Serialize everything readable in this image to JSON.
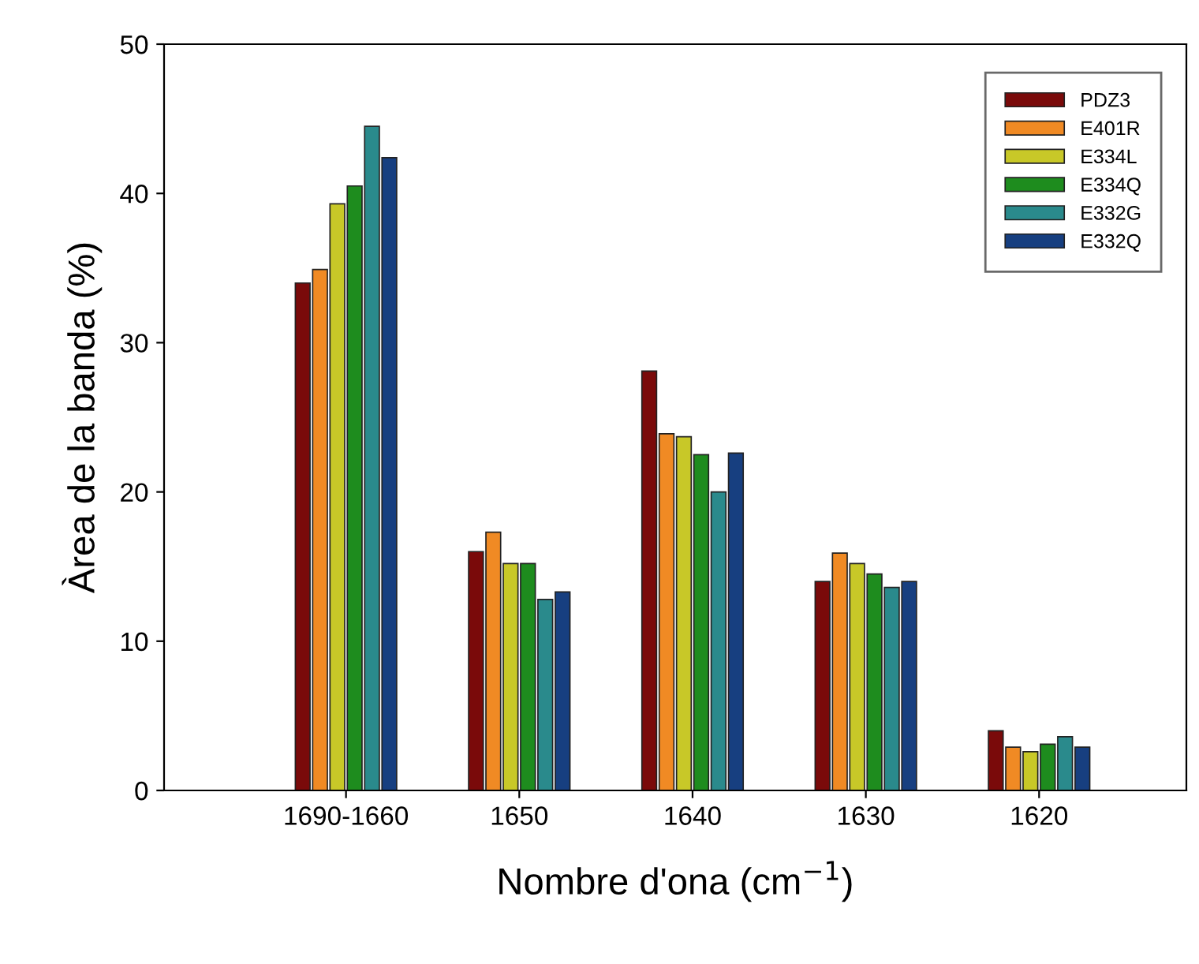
{
  "chart_data": {
    "type": "bar",
    "xlabel": "Nombre d'ona (cm$^{−1}$)",
    "ylabel": "Àrea de la banda (%)",
    "categories": [
      "1690-1660",
      "1650",
      "1640",
      "1630",
      "1620"
    ],
    "series": [
      {
        "name": "PDZ3",
        "color": "#7a0a0a",
        "values": [
          34.0,
          16.0,
          28.1,
          14.0,
          4.0
        ]
      },
      {
        "name": "E401R",
        "color": "#f08a24",
        "values": [
          34.9,
          17.3,
          23.9,
          15.9,
          2.9
        ]
      },
      {
        "name": "E334L",
        "color": "#c8c828",
        "values": [
          39.3,
          15.2,
          23.7,
          15.2,
          2.6
        ]
      },
      {
        "name": "E334Q",
        "color": "#1e8c1e",
        "values": [
          40.5,
          15.2,
          22.5,
          14.5,
          3.1
        ]
      },
      {
        "name": "E332G",
        "color": "#2a8a8c",
        "values": [
          44.5,
          12.8,
          20.0,
          13.6,
          3.6
        ]
      },
      {
        "name": "E332Q",
        "color": "#173f80",
        "values": [
          42.4,
          13.3,
          22.6,
          14.0,
          2.9
        ]
      }
    ],
    "ylim": [
      0,
      50
    ],
    "yticks": [
      0,
      10,
      20,
      30,
      40,
      50
    ],
    "grid": false,
    "legend": "top right"
  }
}
